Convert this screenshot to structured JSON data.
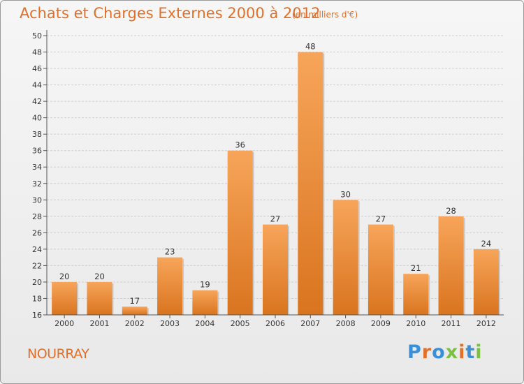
{
  "header": {
    "title": "Achats et Charges Externes 2000 à 2012",
    "subtitle": "(en milliers d'€)"
  },
  "footer": {
    "commune": "NOURRAY",
    "logo_text": "Proxiti"
  },
  "colors": {
    "accent": "#e0702a",
    "bar_light": "#f7a55a",
    "bar_dark": "#d9741f",
    "logo": [
      "#3a8fd8",
      "#e0702a",
      "#3a8fd8",
      "#7ac142",
      "#e0702a",
      "#3a8fd8",
      "#7ac142"
    ]
  },
  "chart_data": {
    "type": "bar",
    "title": "Achats et Charges Externes 2000 à 2012",
    "subtitle": "(en milliers d'€)",
    "categories": [
      "2000",
      "2001",
      "2002",
      "2003",
      "2004",
      "2005",
      "2006",
      "2007",
      "2008",
      "2009",
      "2010",
      "2011",
      "2012"
    ],
    "values": [
      20,
      20,
      17,
      23,
      19,
      36,
      27,
      48,
      30,
      27,
      21,
      28,
      24
    ],
    "ylim": [
      16,
      50
    ],
    "yticks": [
      16,
      18,
      20,
      22,
      24,
      26,
      28,
      30,
      32,
      34,
      36,
      38,
      40,
      42,
      44,
      46,
      48,
      50
    ],
    "grid": true,
    "legend": "none"
  }
}
